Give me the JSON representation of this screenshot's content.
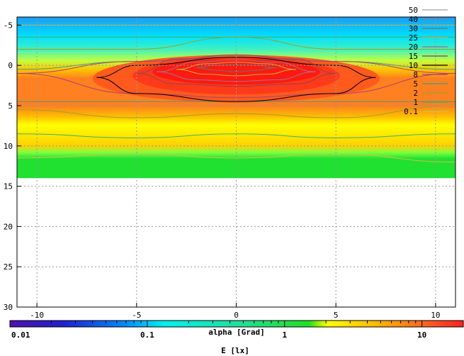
{
  "chart_data": {
    "type": "heatmap",
    "title": "",
    "xlabel": "alpha [Grad]",
    "ylabel": "",
    "xlim": [
      -11,
      11
    ],
    "ylim": [
      30,
      -6
    ],
    "x_ticks": [
      -10,
      -5,
      0,
      5,
      10
    ],
    "y_ticks": [
      -5,
      0,
      5,
      10,
      15,
      20,
      25,
      30
    ],
    "grid": true,
    "legend_position": "top-right",
    "data_extent": {
      "x": [
        -11,
        11
      ],
      "y": [
        -6,
        14
      ]
    },
    "colorbar": {
      "label": "E [lx]",
      "scale": "log",
      "range": [
        0.01,
        20
      ],
      "ticks": [
        "0.01",
        "0.1",
        "1",
        "10"
      ]
    },
    "contour_levels": [
      "50",
      "40",
      "30",
      "25",
      "20",
      "15",
      "10",
      "8",
      "5",
      "2",
      "1",
      "0.1"
    ],
    "contour_colors": [
      "#a0a0a0",
      "#8080a0",
      "#707070",
      "#c8b040",
      "#a07090",
      "#904050",
      "#000000",
      "#b04070",
      "#40a080",
      "#a0a020",
      "#40b060",
      "#d0c040"
    ],
    "series": [
      {
        "name": "0.1",
        "y_by_x": {
          "x": [
            -11,
            -5,
            0,
            5,
            11
          ],
          "top": [
            -5.0,
            -5.0,
            -5.0,
            -5.0,
            -5.0
          ],
          "bottom": [
            11.5,
            11.0,
            11.5,
            11.0,
            12.0
          ]
        }
      },
      {
        "name": "1",
        "y_by_x": {
          "x": [
            -11,
            -5,
            0,
            5,
            11
          ],
          "top": [
            -3.5,
            -3.5,
            -3.5,
            -3.5,
            -3.5
          ],
          "bottom": [
            8.5,
            9.0,
            8.5,
            9.0,
            8.5
          ]
        }
      },
      {
        "name": "2",
        "y_by_x": {
          "x": [
            -11,
            -5,
            0,
            5,
            11
          ],
          "top": [
            -2.0,
            -2.0,
            -3.5,
            -2.0,
            -2.0
          ],
          "bottom": [
            5.5,
            6.5,
            6.0,
            6.5,
            5.0
          ]
        }
      },
      {
        "name": "5",
        "y_by_x": {
          "x": [
            -11,
            -5,
            0,
            5,
            11
          ],
          "top": [
            0.5,
            -0.5,
            -1.0,
            -0.5,
            0.5
          ],
          "bottom": [
            4.5,
            4.5,
            4.5,
            4.5,
            4.5
          ]
        }
      },
      {
        "name": "8",
        "y_by_x": {
          "x": [
            -11,
            -5,
            0,
            5,
            11
          ],
          "top": [
            1.0,
            -0.5,
            -1.0,
            -0.5,
            1.0
          ],
          "bottom": [
            1.0,
            3.5,
            4.0,
            3.5,
            1.0
          ]
        }
      },
      {
        "name": "10",
        "y_by_x": {
          "x": [
            -7,
            -5,
            0,
            5,
            7
          ],
          "top": [
            1.5,
            0.0,
            -1.0,
            0.0,
            1.5
          ],
          "bottom": [
            1.5,
            3.5,
            4.5,
            3.5,
            1.5
          ]
        }
      },
      {
        "name": "15",
        "y_by_x": {
          "x": [
            -5,
            -3,
            0,
            3,
            5
          ],
          "top": [
            1.0,
            -0.8,
            -1.3,
            -0.8,
            1.0
          ],
          "bottom": [
            1.0,
            2.3,
            2.6,
            2.3,
            1.0
          ]
        }
      },
      {
        "name": "20",
        "y_by_x": {
          "x": [
            -4,
            -2,
            0,
            2,
            4
          ],
          "top": [
            0.8,
            -0.4,
            -0.7,
            -0.4,
            0.8
          ],
          "bottom": [
            0.8,
            1.8,
            2.0,
            1.8,
            0.8
          ]
        }
      },
      {
        "name": "25",
        "y_by_x": {
          "x": [
            -3,
            -1.5,
            0,
            1.5,
            3
          ],
          "top": [
            0.5,
            -0.2,
            -0.4,
            -0.2,
            0.5
          ],
          "bottom": [
            0.5,
            1.1,
            1.3,
            1.1,
            0.5
          ]
        }
      },
      {
        "name": "30",
        "y_by_x": {
          "x": [
            -2,
            -1,
            0,
            1,
            2
          ],
          "top": [
            0.3,
            0.0,
            -0.1,
            0.0,
            0.3
          ],
          "bottom": [
            0.3,
            0.6,
            0.8,
            0.6,
            0.3
          ]
        }
      }
    ]
  }
}
